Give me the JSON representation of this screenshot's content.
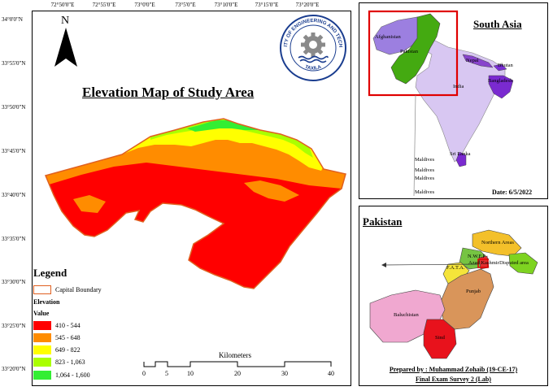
{
  "main_map": {
    "title": "Elevation Map of Study Area",
    "north_label": "N",
    "top_ticks": [
      "72°50'0\"E",
      "72°55'0\"E",
      "73°0'0\"E",
      "73°5'0\"E",
      "73°10'0\"E",
      "73°15'0\"E",
      "73°20'0\"E"
    ],
    "left_ticks": [
      "34°0'0\"N",
      "33°55'0\"N",
      "33°50'0\"N",
      "33°45'0\"N",
      "33°40'0\"N",
      "33°35'0\"N",
      "33°30'0\"N",
      "33°25'0\"N",
      "33°20'0\"N"
    ],
    "logo_text": "UNIVERSITY OF ENGINEERING AND TECHNOLOGY",
    "logo_city": "TAXILA"
  },
  "legend": {
    "title": "Legend",
    "boundary_label": "Capital Boundary",
    "elevation_label": "Elevation",
    "value_label": "Value",
    "boundary_color": "#e06020",
    "classes": [
      {
        "label": "410 - 544",
        "color": "#ff0000"
      },
      {
        "label": "545 - 648",
        "color": "#ff8c00"
      },
      {
        "label": "649 - 822",
        "color": "#ffff00"
      },
      {
        "label": "823 - 1,063",
        "color": "#aaff00"
      },
      {
        "label": "1,064 - 1,600",
        "color": "#33ee33"
      }
    ]
  },
  "scale_bar": {
    "unit": "Kilometers",
    "ticks": [
      "0",
      "5",
      "10",
      "20",
      "30",
      "40"
    ]
  },
  "south_asia": {
    "title": "South Asia",
    "date": "Date: 6/5/2022",
    "labels": [
      "Afghanistan",
      "Pakistan",
      "Nepal",
      "Bhutan",
      "Bangladesh",
      "India",
      "Sri Lanka",
      "Maldives",
      "Maldives",
      "Maldives",
      "Maldives"
    ]
  },
  "pakistan": {
    "title": "Pakistan",
    "labels": [
      "Northern Areas",
      "N.W.F.P",
      "Azad Kashmir",
      "Disputed area",
      "F.A.T.A.",
      "Punjab",
      "Baluchistan",
      "Sind"
    ]
  },
  "credits": {
    "prepared_by": "Prepared by : Muhammad Zohaib (19-CE-17)",
    "course": "Final Exam Survey 2 (Lab)"
  }
}
